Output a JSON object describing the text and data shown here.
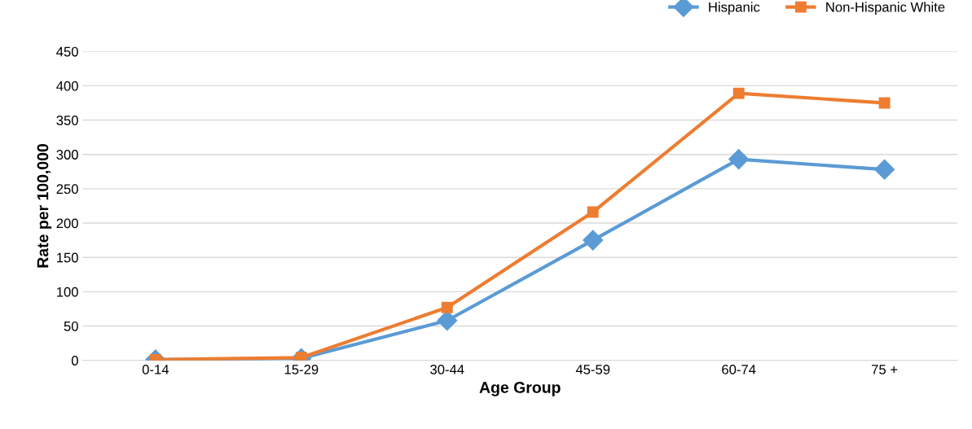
{
  "chart_data": {
    "type": "line",
    "xlabel": "Age Group",
    "ylabel": "Rate per 100,000",
    "categories": [
      "0-14",
      "15-29",
      "30-44",
      "45-59",
      "60-74",
      "75 +"
    ],
    "series": [
      {
        "name": "Hispanic",
        "color": "#5b9bd5",
        "marker": "diamond",
        "values": [
          1,
          3,
          58,
          175,
          293,
          278
        ]
      },
      {
        "name": "Non-Hispanic White",
        "color": "#ed7d31",
        "marker": "square",
        "values": [
          1,
          4,
          77,
          216,
          389,
          375
        ]
      }
    ],
    "ylim": [
      0,
      450
    ],
    "yticks": [
      0,
      50,
      100,
      150,
      200,
      250,
      300,
      350,
      400,
      450
    ],
    "grid": "y",
    "legend": "top right",
    "line_style": "solid"
  }
}
